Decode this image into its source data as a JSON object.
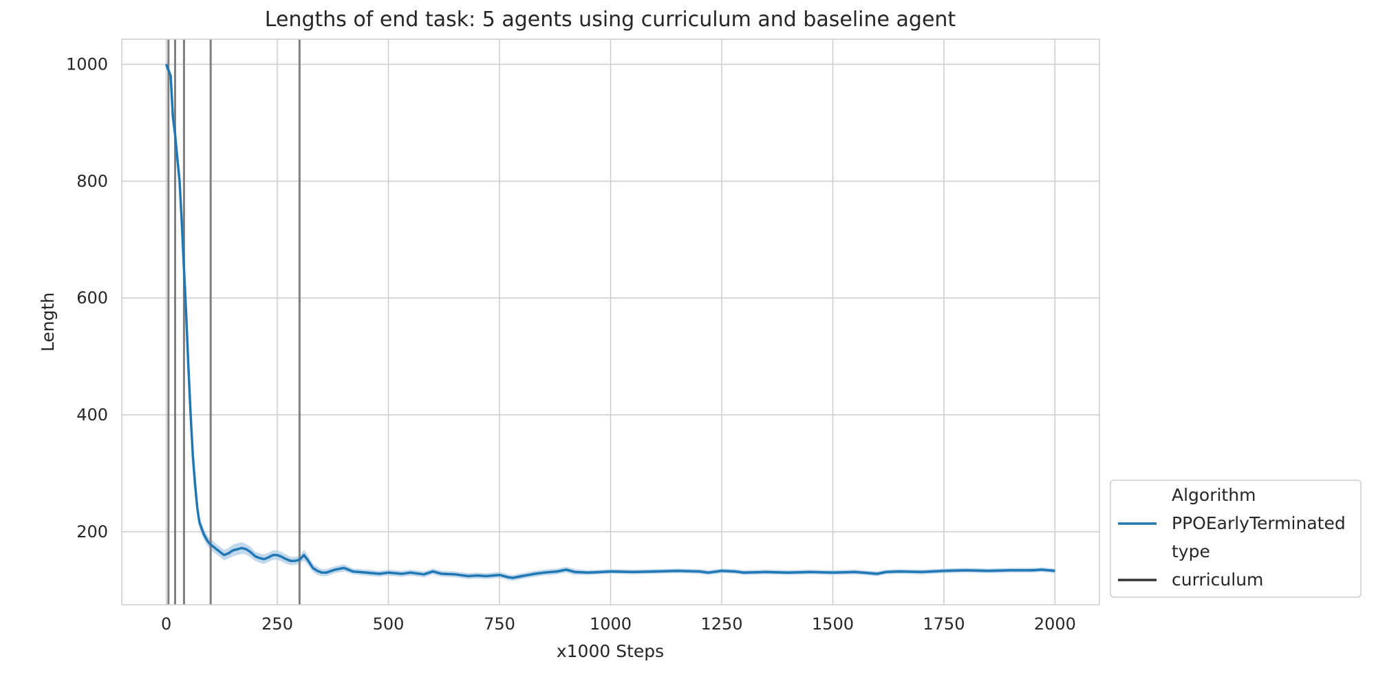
{
  "chart_data": {
    "type": "line",
    "title": "Lengths of end task: 5 agents using curriculum and baseline agent",
    "xlabel": "x1000 Steps",
    "ylabel": "Length",
    "xlim": [
      -100,
      2100
    ],
    "ylim": [
      75,
      1043
    ],
    "x_ticks": [
      0,
      250,
      500,
      750,
      1000,
      1250,
      1500,
      1750,
      2000
    ],
    "y_ticks": [
      200,
      400,
      600,
      800,
      1000
    ],
    "grid": true,
    "legend_position": "lower-right outside",
    "legend": {
      "algorithm_title": "Algorithm",
      "algorithm_entry": "PPOEarlyTerminated",
      "type_title": "type",
      "type_entry": "curriculum"
    },
    "colors": {
      "series": "#1f77b4",
      "band": "#aecbe6",
      "curriculum_line": "#7f7f7f",
      "grid": "#cccccc",
      "legend_type_line": "#333333"
    },
    "curriculum_steps": [
      5,
      20,
      40,
      100,
      300
    ],
    "series": [
      {
        "name": "PPOEarlyTerminated",
        "x": [
          0,
          5,
          10,
          15,
          20,
          25,
          30,
          35,
          40,
          45,
          50,
          55,
          60,
          65,
          70,
          75,
          80,
          85,
          90,
          95,
          100,
          110,
          120,
          130,
          140,
          150,
          160,
          170,
          180,
          190,
          200,
          210,
          220,
          230,
          240,
          250,
          260,
          270,
          280,
          290,
          300,
          310,
          320,
          330,
          340,
          350,
          360,
          380,
          400,
          420,
          450,
          480,
          500,
          530,
          550,
          580,
          600,
          620,
          650,
          680,
          700,
          720,
          750,
          770,
          780,
          800,
          830,
          850,
          880,
          900,
          920,
          950,
          980,
          1000,
          1050,
          1100,
          1150,
          1200,
          1220,
          1250,
          1280,
          1300,
          1350,
          1400,
          1450,
          1500,
          1550,
          1600,
          1620,
          1650,
          1700,
          1750,
          1800,
          1850,
          1900,
          1950,
          1970,
          2000
        ],
        "y": [
          1000,
          990,
          980,
          910,
          880,
          840,
          800,
          730,
          650,
          570,
          480,
          400,
          330,
          280,
          240,
          215,
          205,
          195,
          188,
          182,
          178,
          172,
          166,
          160,
          163,
          168,
          170,
          172,
          170,
          165,
          158,
          155,
          153,
          156,
          160,
          160,
          157,
          153,
          150,
          150,
          152,
          160,
          150,
          138,
          133,
          130,
          130,
          135,
          138,
          132,
          130,
          128,
          130,
          128,
          130,
          127,
          132,
          128,
          127,
          124,
          125,
          124,
          126,
          122,
          121,
          124,
          128,
          130,
          132,
          135,
          131,
          130,
          131,
          132,
          131,
          132,
          133,
          132,
          130,
          133,
          132,
          130,
          131,
          130,
          131,
          130,
          131,
          128,
          131,
          132,
          131,
          133,
          134,
          133,
          134,
          134,
          135,
          133
        ],
        "band_halfwidth": [
          6,
          6,
          8,
          12,
          14,
          15,
          16,
          16,
          16,
          15,
          14,
          13,
          12,
          11,
          10,
          10,
          10,
          9,
          9,
          9,
          9,
          9,
          9,
          9,
          9,
          10,
          10,
          10,
          9,
          9,
          8,
          8,
          8,
          8,
          8,
          8,
          8,
          8,
          7,
          7,
          7,
          9,
          8,
          7,
          7,
          6,
          6,
          6,
          6,
          5,
          5,
          5,
          5,
          5,
          5,
          5,
          5,
          5,
          5,
          5,
          5,
          5,
          5,
          5,
          5,
          5,
          5,
          5,
          5,
          5,
          5,
          4,
          4,
          4,
          4,
          4,
          4,
          4,
          4,
          4,
          4,
          4,
          4,
          4,
          4,
          4,
          4,
          4,
          4,
          4,
          4,
          4,
          4,
          4,
          4,
          4,
          4,
          4
        ]
      }
    ]
  }
}
